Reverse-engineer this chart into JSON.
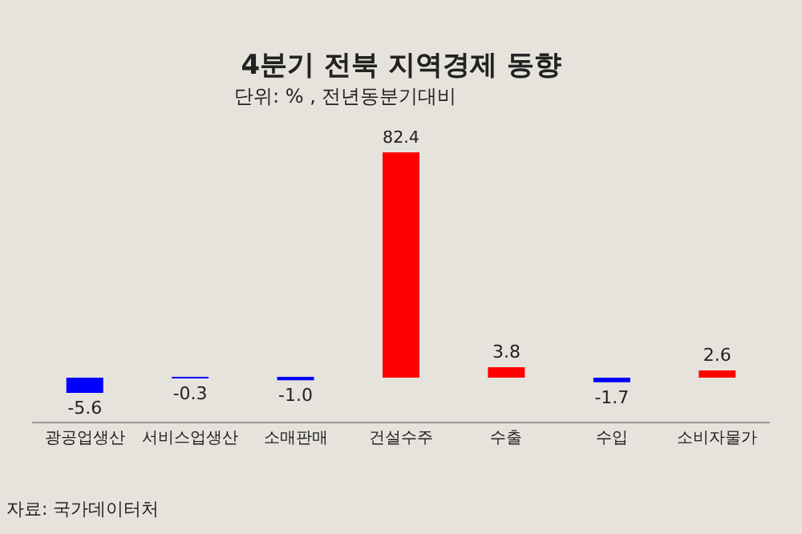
{
  "chart_data": {
    "type": "bar",
    "title": "4분기 전북 지역경제 동향",
    "subtitle": "단위: % , 전년동분기대비",
    "categories": [
      "광공업생산",
      "서비스업생산",
      "소매판매",
      "건설수주",
      "수출",
      "수입",
      "소비자물가"
    ],
    "values": [
      -5.6,
      -0.3,
      -1.0,
      82.4,
      3.8,
      -1.7,
      2.6
    ],
    "colors": [
      "#0000ff",
      "#0000ff",
      "#0000ff",
      "#ff0000",
      "#ff0000",
      "#0000ff",
      "#ff0000"
    ],
    "value_labels": [
      "-5.6",
      "-0.3",
      "-1.0",
      "82.4",
      "3.8",
      "-1.7",
      "2.6"
    ],
    "grid": false,
    "annotations": [
      "자료: 국가데이터처"
    ]
  }
}
